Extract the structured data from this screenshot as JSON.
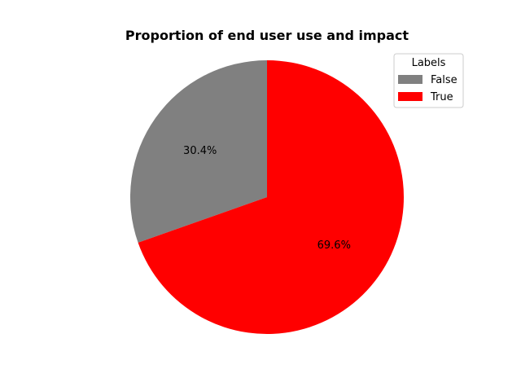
{
  "chart_data": {
    "type": "pie",
    "title": "Proportion of end user use and impact",
    "slices": [
      {
        "label": "False",
        "value": 30.4,
        "pct_label": "30.4%",
        "color": "#808080"
      },
      {
        "label": "True",
        "value": 69.6,
        "pct_label": "69.6%",
        "color": "#ff0000"
      }
    ],
    "start_angle_deg": 90,
    "direction": "counterclockwise",
    "legend": {
      "title": "Labels",
      "placement": "top-right",
      "entries": [
        "False",
        "True"
      ]
    }
  }
}
